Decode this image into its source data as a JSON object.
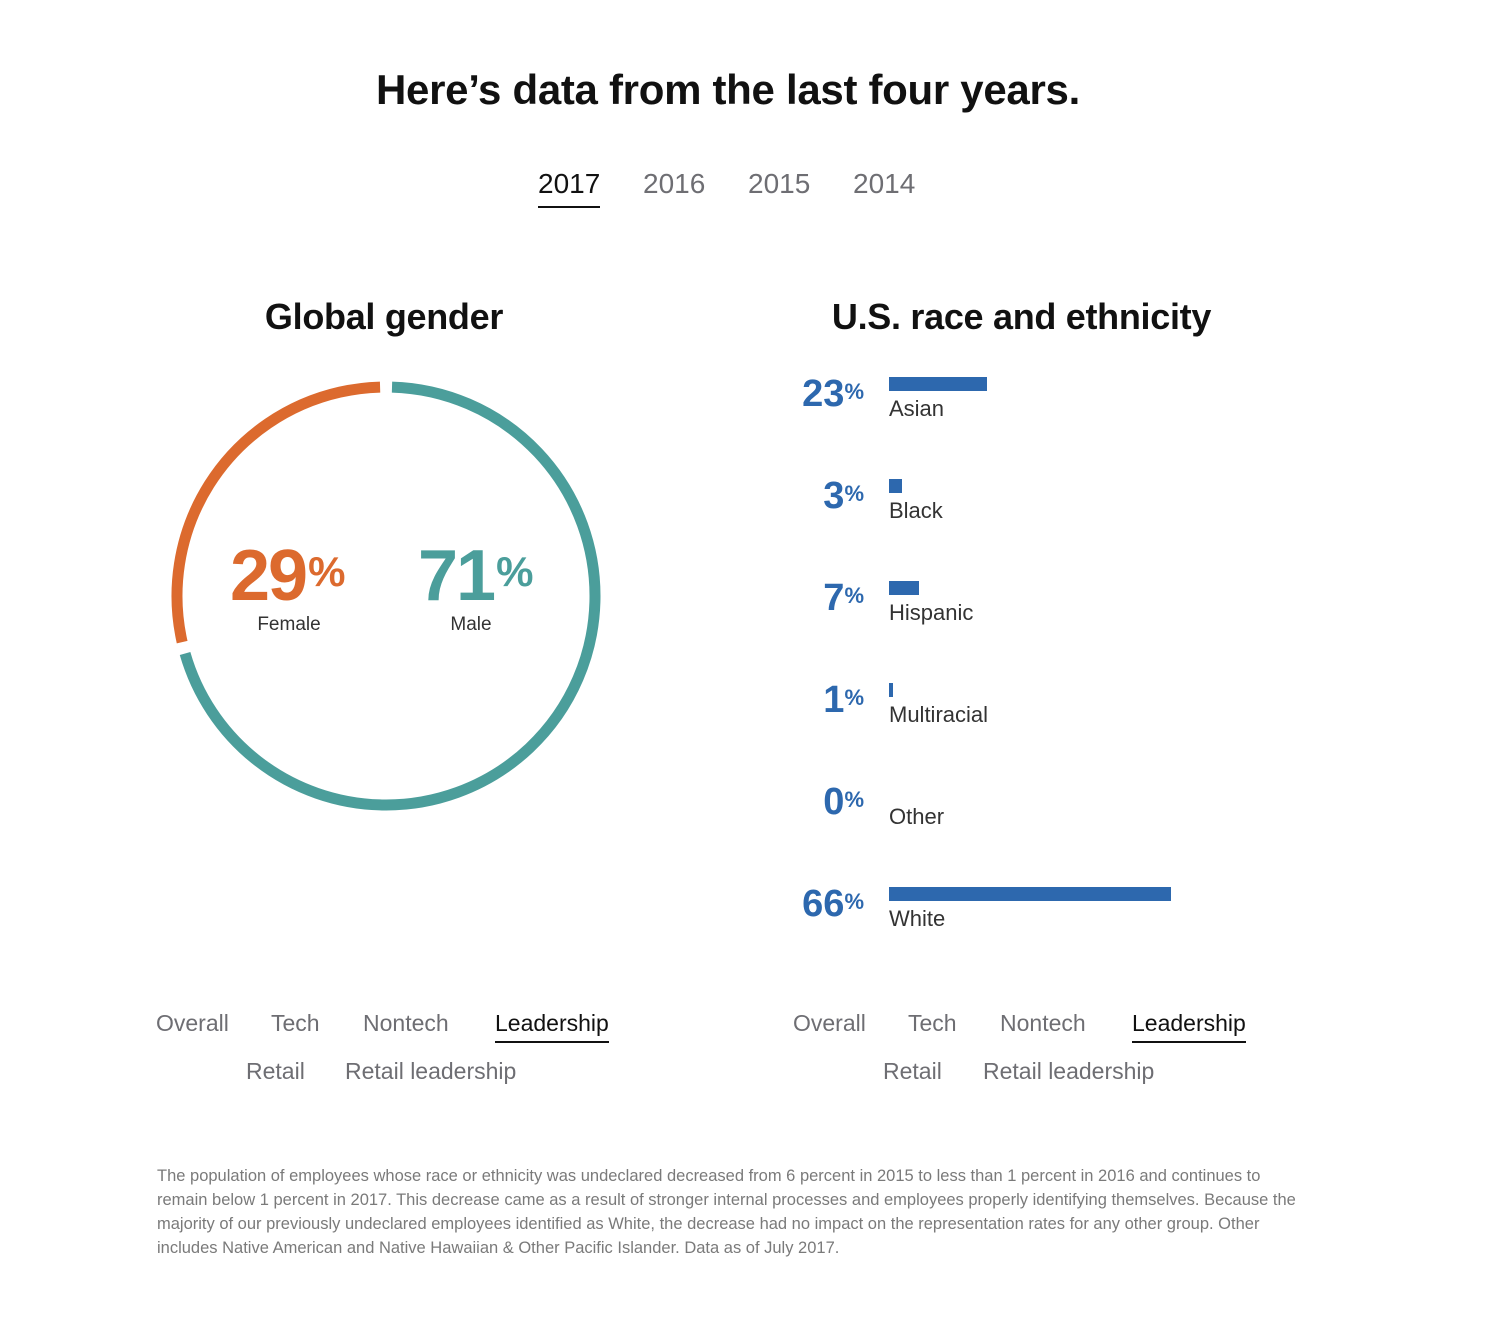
{
  "header": {
    "title": "Here’s data from the last four years."
  },
  "years": [
    "2017",
    "2016",
    "2015",
    "2014"
  ],
  "selected_year": "2017",
  "colors": {
    "female": "#dc6a2e",
    "male": "#4b9e9b",
    "race": "#2d68ae"
  },
  "gender": {
    "title": "Global gender",
    "female": {
      "value": "29",
      "unit": "%",
      "label": "Female"
    },
    "male": {
      "value": "71",
      "unit": "%",
      "label": "Male"
    },
    "tabs": [
      "Overall",
      "Tech",
      "Nontech",
      "Leadership",
      "Retail",
      "Retail leadership"
    ],
    "active_tab": "Leadership"
  },
  "race": {
    "title": "U.S. race and ethnicity",
    "rows": [
      {
        "value": "23",
        "unit": "%",
        "label": "Asian"
      },
      {
        "value": "3",
        "unit": "%",
        "label": "Black"
      },
      {
        "value": "7",
        "unit": "%",
        "label": "Hispanic"
      },
      {
        "value": "1",
        "unit": "%",
        "label": "Multiracial"
      },
      {
        "value": "0",
        "unit": "%",
        "label": "Other"
      },
      {
        "value": "66",
        "unit": "%",
        "label": "White"
      }
    ],
    "tabs": [
      "Overall",
      "Tech",
      "Nontech",
      "Leadership",
      "Retail",
      "Retail leadership"
    ],
    "active_tab": "Leadership"
  },
  "footnote": "The population of employees whose race or ethnicity was undeclared decreased from 6 percent in 2015 to less than 1 percent in 2016 and continues to remain below 1 percent in 2017. This decrease came as a result of stronger internal processes and employees properly identifying themselves. Because the majority of our previously undeclared employees identified as White, the decrease had no impact on the representation rates for any other group. Other includes Native American and Native Hawaiian & Other Pacific Islander. Data as of July 2017."
}
